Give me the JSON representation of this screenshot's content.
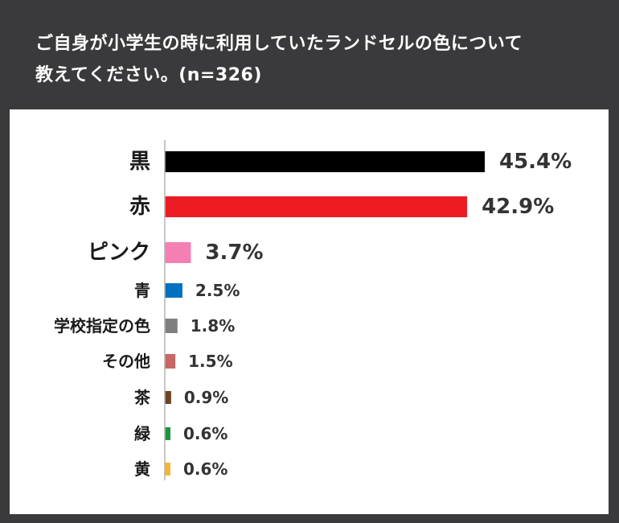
{
  "title": {
    "line1": "ご自身が小学生の時に利用していたランドセルの色について",
    "line2": "教えてください。(n=326)"
  },
  "chart_data": {
    "type": "bar",
    "orientation": "horizontal",
    "categories": [
      "黒",
      "赤",
      "ピンク",
      "青",
      "学校指定の色",
      "その他",
      "茶",
      "緑",
      "黄"
    ],
    "values": [
      45.4,
      42.9,
      3.7,
      2.5,
      1.8,
      1.5,
      0.9,
      0.6,
      0.6
    ],
    "value_labels": [
      "45.4%",
      "42.9%",
      "3.7%",
      "2.5%",
      "1.8%",
      "1.5%",
      "0.9%",
      "0.6%",
      "0.6%"
    ],
    "colors": [
      "#000000",
      "#ed1c24",
      "#f47fb3",
      "#0070c0",
      "#7f7f7f",
      "#c96666",
      "#6b4423",
      "#1a9641",
      "#f5b731"
    ],
    "title": "",
    "xlabel": "",
    "ylabel": "",
    "grid": false,
    "legend": "none"
  }
}
